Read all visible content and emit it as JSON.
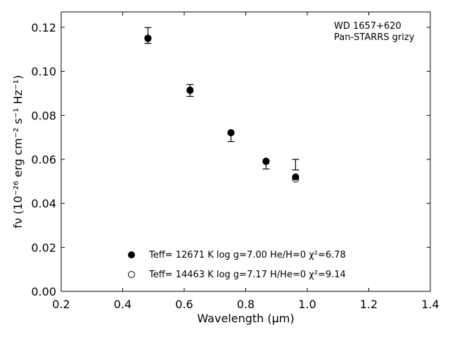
{
  "chart_data": {
    "type": "scatter",
    "annotation_lines": [
      "WD 1657+620",
      "Pan-STARRS grizy"
    ],
    "xlabel": "Wavelength (μm)",
    "ylabel": "fν (10⁻²⁶ erg cm⁻² s⁻¹ Hz⁻¹)",
    "xlim": [
      0.2,
      1.4
    ],
    "ylim": [
      0.0,
      0.127
    ],
    "xticks": [
      "0.2",
      "0.4",
      "0.6",
      "0.8",
      "1.0",
      "1.2",
      "1.4"
    ],
    "yticks": [
      "0.00",
      "0.02",
      "0.04",
      "0.06",
      "0.08",
      "0.10",
      "0.12"
    ],
    "grid": false,
    "legend_position": "lower-center",
    "observed": {
      "x": [
        0.482,
        0.619,
        0.752,
        0.866,
        0.962
      ],
      "y": [
        0.1163,
        0.0913,
        0.0703,
        0.0576,
        0.0576
      ],
      "yerr": [
        0.0036,
        0.0027,
        0.0022,
        0.002,
        0.0024
      ]
    },
    "series": [
      {
        "name": "Teff= 12671 K  log g=7.00  He/H=0  χ²=6.78",
        "marker": "filled-circle",
        "x": [
          0.482,
          0.619,
          0.752,
          0.866,
          0.962
        ],
        "y": [
          0.1151,
          0.0913,
          0.0721,
          0.0592,
          0.052
        ]
      },
      {
        "name": "Teff= 14463 K  log g=7.17  H/He=0  χ²=9.14",
        "marker": "open-circle",
        "x": [
          0.482,
          0.619,
          0.752,
          0.866,
          0.962
        ],
        "y": [
          0.1149,
          0.0915,
          0.0721,
          0.059,
          0.0511
        ]
      }
    ]
  }
}
